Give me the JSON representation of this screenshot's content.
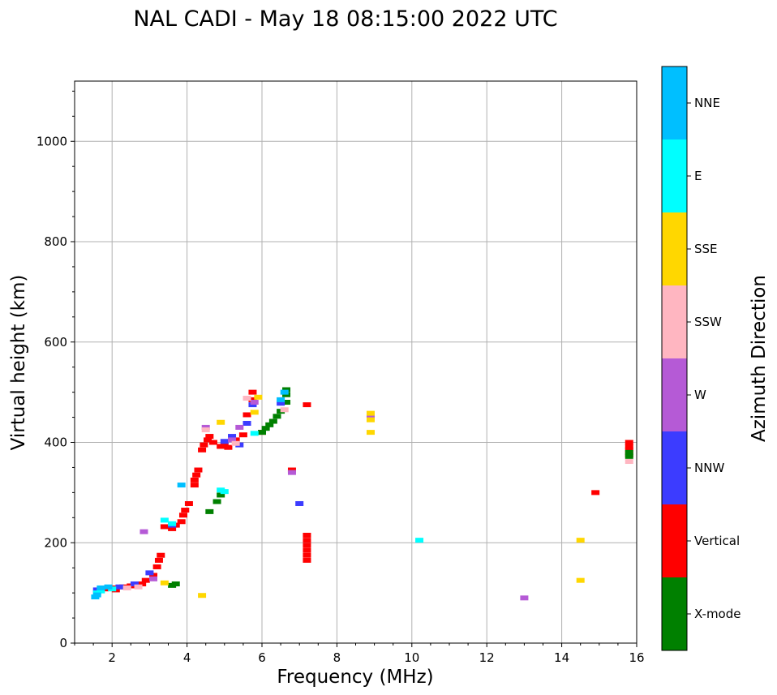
{
  "chart_data": {
    "type": "scatter",
    "title": "NAL CADI - May 18 08:15:00 2022 UTC",
    "xlabel": "Frequency (MHz)",
    "ylabel": "Virtual height (km)",
    "xlim": [
      1,
      16
    ],
    "ylim": [
      0,
      1120
    ],
    "xticks": [
      2,
      4,
      6,
      8,
      10,
      12,
      14,
      16
    ],
    "yticks": [
      0,
      200,
      400,
      600,
      800,
      1000
    ],
    "grid": true,
    "colorbar": {
      "label": "Azimuth Direction",
      "categories": [
        "X-mode",
        "Vertical",
        "NNW",
        "W",
        "SSW",
        "SSE",
        "E",
        "NNE"
      ],
      "colors": [
        "#008000",
        "#ff0000",
        "#3c3cff",
        "#b55ad6",
        "#ffb6c1",
        "#ffd700",
        "#00ffff",
        "#00bfff"
      ]
    },
    "series": [
      {
        "name": "Vertical",
        "points": [
          [
            1.8,
            108
          ],
          [
            2.0,
            110
          ],
          [
            2.1,
            106
          ],
          [
            2.3,
            112
          ],
          [
            2.5,
            114
          ],
          [
            2.8,
            118
          ],
          [
            2.9,
            125
          ],
          [
            3.1,
            135
          ],
          [
            3.2,
            152
          ],
          [
            3.25,
            165
          ],
          [
            3.3,
            175
          ],
          [
            3.4,
            232
          ],
          [
            3.6,
            228
          ],
          [
            3.7,
            235
          ],
          [
            3.85,
            242
          ],
          [
            3.9,
            255
          ],
          [
            3.95,
            265
          ],
          [
            4.05,
            278
          ],
          [
            4.2,
            315
          ],
          [
            4.2,
            325
          ],
          [
            4.25,
            335
          ],
          [
            4.3,
            345
          ],
          [
            4.4,
            385
          ],
          [
            4.45,
            395
          ],
          [
            4.55,
            405
          ],
          [
            4.6,
            412
          ],
          [
            4.7,
            400
          ],
          [
            4.9,
            392
          ],
          [
            5.0,
            395
          ],
          [
            5.1,
            390
          ],
          [
            5.3,
            405
          ],
          [
            5.5,
            415
          ],
          [
            5.6,
            455
          ],
          [
            5.75,
            500
          ],
          [
            5.75,
            485
          ],
          [
            6.0,
            420
          ],
          [
            6.8,
            345
          ],
          [
            7.2,
            475
          ],
          [
            7.2,
            215
          ],
          [
            7.2,
            205
          ],
          [
            7.2,
            195
          ],
          [
            7.2,
            185
          ],
          [
            7.2,
            175
          ],
          [
            7.2,
            165
          ],
          [
            14.9,
            300
          ],
          [
            15.8,
            400
          ],
          [
            15.8,
            392
          ],
          [
            15.8,
            385
          ],
          [
            15.8,
            375
          ]
        ]
      },
      {
        "name": "X-mode",
        "points": [
          [
            3.6,
            115
          ],
          [
            3.7,
            118
          ],
          [
            4.6,
            262
          ],
          [
            4.8,
            282
          ],
          [
            4.9,
            295
          ],
          [
            6.0,
            420
          ],
          [
            6.1,
            428
          ],
          [
            6.2,
            435
          ],
          [
            6.3,
            442
          ],
          [
            6.4,
            452
          ],
          [
            6.5,
            462
          ],
          [
            6.65,
            480
          ],
          [
            6.65,
            495
          ],
          [
            6.65,
            505
          ],
          [
            15.8,
            380
          ],
          [
            15.8,
            372
          ]
        ]
      },
      {
        "name": "NNW",
        "points": [
          [
            1.6,
            106
          ],
          [
            2.2,
            112
          ],
          [
            2.6,
            118
          ],
          [
            3.0,
            140
          ],
          [
            3.6,
            235
          ],
          [
            5.0,
            402
          ],
          [
            5.2,
            412
          ],
          [
            5.4,
            395
          ],
          [
            5.6,
            438
          ],
          [
            5.75,
            475
          ],
          [
            6.5,
            478
          ],
          [
            7.0,
            278
          ]
        ]
      },
      {
        "name": "W",
        "points": [
          [
            2.85,
            222
          ],
          [
            3.1,
            128
          ],
          [
            4.5,
            430
          ],
          [
            5.2,
            405
          ],
          [
            5.4,
            430
          ],
          [
            5.8,
            480
          ],
          [
            6.8,
            340
          ],
          [
            8.9,
            452
          ],
          [
            13.0,
            90
          ]
        ]
      },
      {
        "name": "SSW",
        "points": [
          [
            2.4,
            110
          ],
          [
            2.7,
            112
          ],
          [
            4.5,
            425
          ],
          [
            5.3,
            398
          ],
          [
            5.6,
            488
          ],
          [
            6.6,
            465
          ],
          [
            15.8,
            362
          ]
        ]
      },
      {
        "name": "SSE",
        "points": [
          [
            3.4,
            120
          ],
          [
            4.4,
            95
          ],
          [
            4.9,
            440
          ],
          [
            5.8,
            460
          ],
          [
            5.9,
            490
          ],
          [
            8.9,
            458
          ],
          [
            8.9,
            445
          ],
          [
            8.9,
            420
          ],
          [
            14.5,
            205
          ],
          [
            14.5,
            125
          ]
        ]
      },
      {
        "name": "E",
        "points": [
          [
            1.6,
            100
          ],
          [
            1.7,
            104
          ],
          [
            2.0,
            108
          ],
          [
            3.4,
            245
          ],
          [
            3.6,
            238
          ],
          [
            4.9,
            305
          ],
          [
            5.0,
            302
          ],
          [
            5.8,
            418
          ],
          [
            10.2,
            205
          ]
        ]
      },
      {
        "name": "NNE",
        "points": [
          [
            1.55,
            92
          ],
          [
            1.6,
            96
          ],
          [
            1.7,
            110
          ],
          [
            1.9,
            112
          ],
          [
            3.85,
            315
          ],
          [
            6.5,
            485
          ],
          [
            6.6,
            500
          ]
        ]
      }
    ]
  }
}
